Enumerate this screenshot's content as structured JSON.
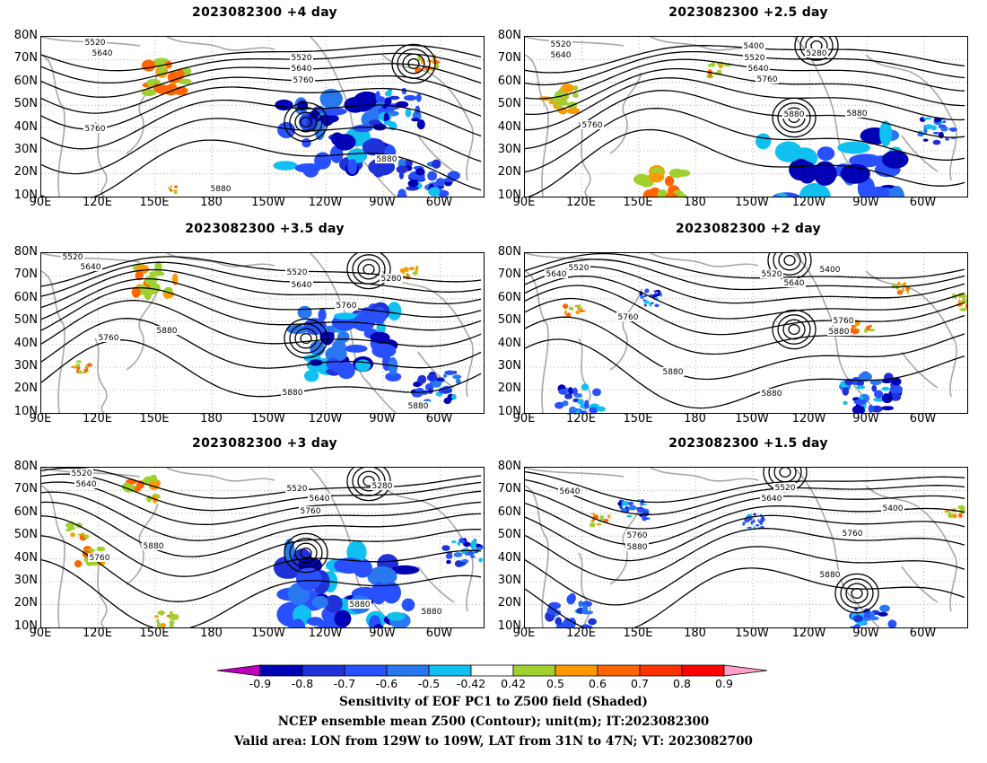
{
  "panels": [
    {
      "id": "p4d",
      "title": "2023082300  +4 day"
    },
    {
      "id": "p25d",
      "title": "2023082300  +2.5 day"
    },
    {
      "id": "p35d",
      "title": "2023082300  +3.5 day"
    },
    {
      "id": "p2d",
      "title": "2023082300  +2 day"
    },
    {
      "id": "p3d",
      "title": "2023082300  +3 day"
    },
    {
      "id": "p15d",
      "title": "2023082300  +1.5 day"
    }
  ],
  "axes": {
    "lat_labels": [
      "80N",
      "70N",
      "60N",
      "50N",
      "40N",
      "30N",
      "20N",
      "10N"
    ],
    "lon_labels": [
      "90E",
      "120E",
      "150E",
      "180",
      "150W",
      "120W",
      "90W",
      "60W"
    ]
  },
  "contour_labels": {
    "p4d": [
      "5520",
      "5640",
      "5520",
      "5640",
      "5760",
      "5760",
      "5880",
      "5880"
    ],
    "p25d": [
      "5520",
      "5640",
      "5400",
      "5520",
      "5280",
      "5640",
      "5760",
      "5760",
      "5880",
      "5880"
    ],
    "p35d": [
      "5520",
      "5640",
      "5520",
      "5640",
      "5280",
      "5760",
      "5760",
      "5880",
      "5880",
      "5880"
    ],
    "p2d": [
      "5640",
      "5520",
      "5520",
      "5400",
      "5640",
      "5760",
      "5760",
      "5880",
      "5880",
      "5880"
    ],
    "p3d": [
      "5520",
      "5640",
      "5520",
      "5280",
      "5640",
      "5760",
      "5880",
      "5760",
      "5880",
      "5880"
    ],
    "p15d": [
      "5640",
      "5520",
      "5640",
      "5400",
      "5760",
      "5880",
      "5760",
      "5880"
    ]
  },
  "colorbar": {
    "labels": [
      "-0.9",
      "-0.8",
      "-0.7",
      "-0.6",
      "-0.5",
      "-0.42",
      "0.42",
      "0.5",
      "0.6",
      "0.7",
      "0.8",
      "0.9"
    ],
    "colors": [
      "#c000c0",
      "#0000b4",
      "#1e32d8",
      "#2850ff",
      "#2a78f0",
      "#10c0f0",
      "#ffffff",
      "#a0d030",
      "#ff9900",
      "#ff6600",
      "#ff3300",
      "#ff0000",
      "#ffa0c8"
    ]
  },
  "footer": {
    "line1": "Sensitivity of EOF PC1 to Z500 field (Shaded)",
    "line2": "NCEP ensemble mean Z500 (Contour); unit(m); IT:2023082300",
    "line3": "Valid area: LON from 129W to 109W, LAT from 31N to 47N; VT: 2023082700"
  }
}
